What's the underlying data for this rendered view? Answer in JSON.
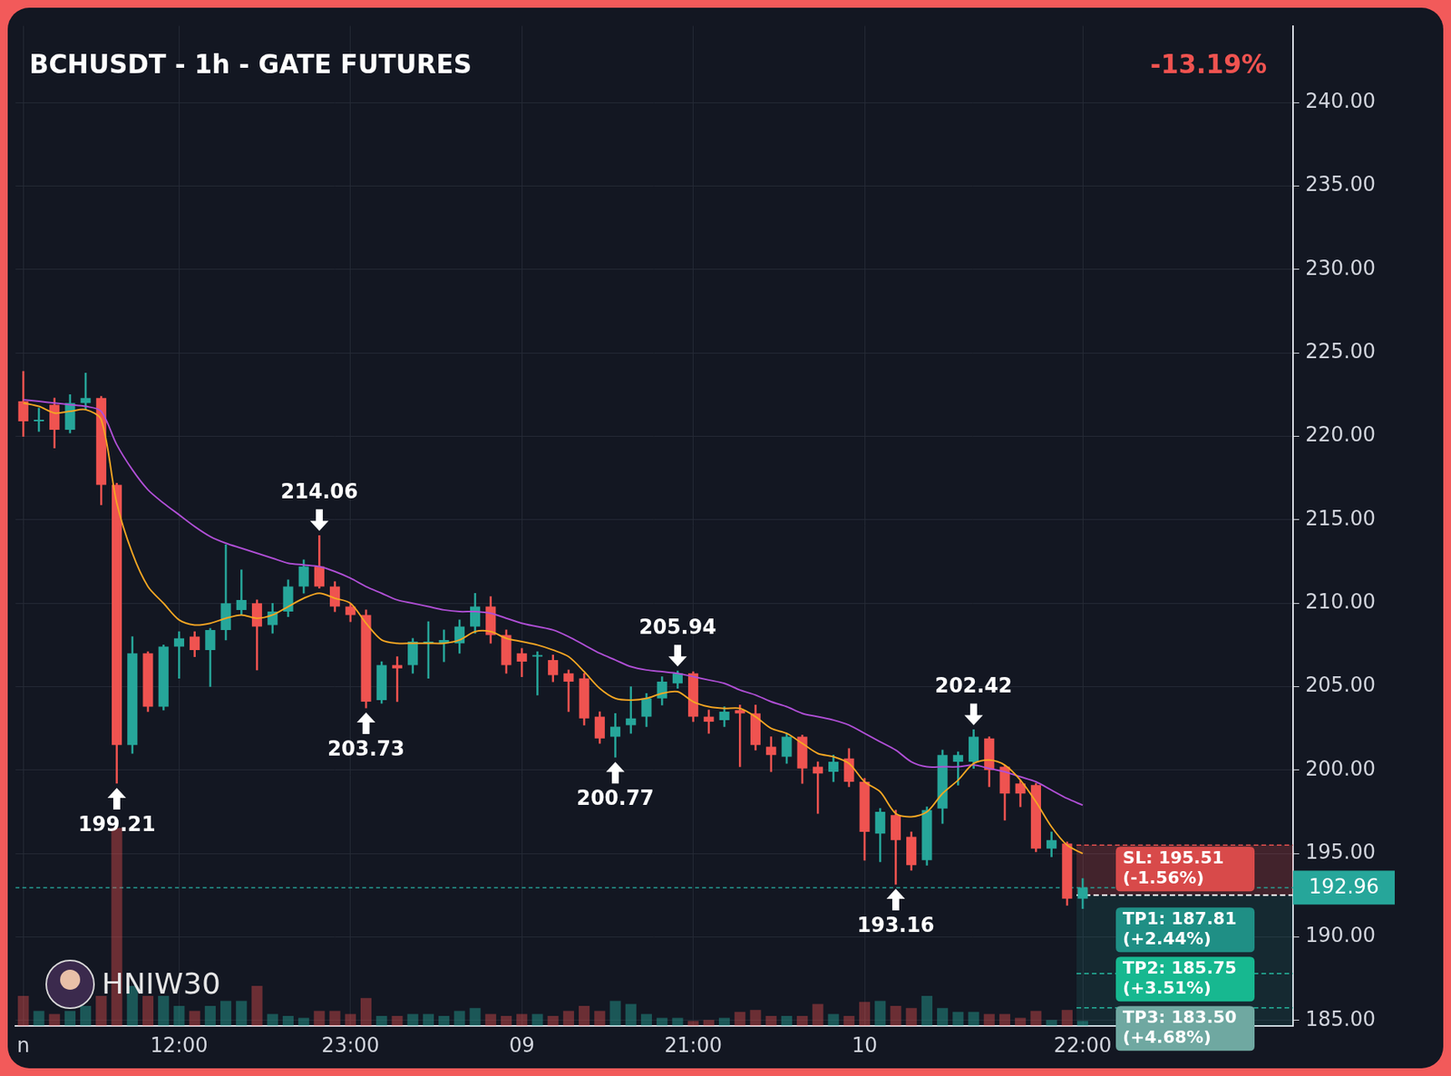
{
  "chart_data": {
    "type": "candlestick",
    "title": "BCHUSDT - 1h - GATE FUTURES",
    "change_label": "-13.19%",
    "watermark": "HNIW30",
    "categories": [
      "n",
      null,
      null,
      null,
      null,
      null,
      null,
      null,
      null,
      null,
      "12:00",
      null,
      null,
      null,
      null,
      null,
      null,
      null,
      null,
      null,
      null,
      "23:00",
      null,
      null,
      null,
      null,
      null,
      null,
      null,
      null,
      null,
      null,
      "09",
      null,
      null,
      null,
      null,
      null,
      null,
      null,
      null,
      null,
      null,
      "21:00",
      null,
      null,
      null,
      null,
      null,
      null,
      null,
      null,
      null,
      null,
      "10",
      null,
      null,
      null,
      null,
      null,
      null,
      null,
      null,
      null,
      null,
      null,
      null,
      null,
      "22:00"
    ],
    "open": [
      222.1,
      220.9,
      221.9,
      220.4,
      222.0,
      222.3,
      217.1,
      201.5,
      207.0,
      203.8,
      207.4,
      208.0,
      207.2,
      208.4,
      209.6,
      210.0,
      208.7,
      209.5,
      211.0,
      212.2,
      211.0,
      209.8,
      209.3,
      204.2,
      206.3,
      206.3,
      207.6,
      207.6,
      207.6,
      208.6,
      209.8,
      208.1,
      207.0,
      206.8,
      206.6,
      205.8,
      205.5,
      203.2,
      202.0,
      202.7,
      203.2,
      204.3,
      205.2,
      205.8,
      203.2,
      203.0,
      203.6,
      203.4,
      201.4,
      200.8,
      202.0,
      200.2,
      199.9,
      200.7,
      199.3,
      196.2,
      197.3,
      196.0,
      194.6,
      197.7,
      200.5,
      200.5,
      201.9,
      200.2,
      199.2,
      199.1,
      195.3,
      195.6,
      192.3
    ],
    "high": [
      223.9,
      221.7,
      222.3,
      222.5,
      223.8,
      222.4,
      217.2,
      208.0,
      207.1,
      207.5,
      208.3,
      208.3,
      208.5,
      213.5,
      212.0,
      210.2,
      210.0,
      211.4,
      212.6,
      214.06,
      211.3,
      210.0,
      209.6,
      206.5,
      206.8,
      207.9,
      208.9,
      208.4,
      209.0,
      210.6,
      210.4,
      208.4,
      207.3,
      207.1,
      206.9,
      206.0,
      205.8,
      203.5,
      203.4,
      205.0,
      204.6,
      205.6,
      205.94,
      205.9,
      203.6,
      203.8,
      203.9,
      203.9,
      202.0,
      202.2,
      202.1,
      200.5,
      200.9,
      201.3,
      199.5,
      197.7,
      197.6,
      196.3,
      197.8,
      201.2,
      201.1,
      202.42,
      202.0,
      200.3,
      199.4,
      199.2,
      196.3,
      195.7,
      193.5
    ],
    "low": [
      220.0,
      220.3,
      219.3,
      220.2,
      221.6,
      215.9,
      199.21,
      201.0,
      203.5,
      203.6,
      205.5,
      206.8,
      205.0,
      207.8,
      209.3,
      206.0,
      208.2,
      209.2,
      210.6,
      210.9,
      209.5,
      208.9,
      203.73,
      204.0,
      204.1,
      205.8,
      205.5,
      206.5,
      207.0,
      208.2,
      207.6,
      205.8,
      205.6,
      204.5,
      205.3,
      203.5,
      202.7,
      201.6,
      200.77,
      202.2,
      202.6,
      203.9,
      204.9,
      202.9,
      202.2,
      202.6,
      200.2,
      201.2,
      199.9,
      200.4,
      199.2,
      197.4,
      199.3,
      199.0,
      194.6,
      194.5,
      193.16,
      194.0,
      194.3,
      196.8,
      199.1,
      200.1,
      199.0,
      197.0,
      197.8,
      195.1,
      194.8,
      191.9,
      191.7
    ],
    "close": [
      220.9,
      221.0,
      220.4,
      222.0,
      222.3,
      217.1,
      201.5,
      207.0,
      203.8,
      207.4,
      207.9,
      207.2,
      208.4,
      210.0,
      210.2,
      208.6,
      209.5,
      211.0,
      212.2,
      211.0,
      209.8,
      209.3,
      204.1,
      206.3,
      206.1,
      207.7,
      207.7,
      207.8,
      208.6,
      209.8,
      208.1,
      206.3,
      206.5,
      206.9,
      205.7,
      205.3,
      203.1,
      201.9,
      202.6,
      203.1,
      204.3,
      205.3,
      205.8,
      203.2,
      202.9,
      203.5,
      203.4,
      201.5,
      200.9,
      202.0,
      200.1,
      199.8,
      200.5,
      199.3,
      196.3,
      197.5,
      195.8,
      194.3,
      197.6,
      200.9,
      200.9,
      202.0,
      200.0,
      198.6,
      198.6,
      195.3,
      195.8,
      192.3,
      192.96
    ],
    "series": [
      {
        "color": "#f5a623",
        "values": [
          222,
          221.8,
          221.4,
          221.5,
          221.6,
          221,
          216,
          213,
          211,
          210,
          209,
          208.7,
          208.8,
          209.1,
          209.3,
          209.1,
          209.3,
          209.8,
          210.3,
          210.6,
          210.3,
          210,
          208.8,
          207.8,
          207.6,
          207.6,
          207.6,
          207.6,
          207.8,
          208.3,
          208.3,
          207.9,
          207.7,
          207.5,
          207.2,
          206.8,
          205.9,
          204.9,
          204.3,
          204.2,
          204.3,
          204.6,
          204.7,
          204.1,
          203.8,
          203.7,
          203.7,
          203.2,
          202.5,
          202.2,
          201.6,
          201,
          200.8,
          200.4,
          199.3,
          198.7,
          197.4,
          197.2,
          197.5,
          198.6,
          199.4,
          200.4,
          200.6,
          200.3,
          199.4,
          198.1,
          196.6,
          195.5,
          195
        ]
      },
      {
        "color": "#b04fd6",
        "values": [
          222.2,
          222.1,
          222,
          221.9,
          221.8,
          221.5,
          219.5,
          218,
          216.8,
          216,
          215.3,
          214.6,
          214,
          213.6,
          213.3,
          213,
          212.7,
          212.4,
          212.3,
          212.2,
          211.9,
          211.5,
          211,
          210.6,
          210.2,
          210,
          209.8,
          209.6,
          209.5,
          209.5,
          209.4,
          209.1,
          208.8,
          208.6,
          208.4,
          208,
          207.5,
          207,
          206.6,
          206.2,
          206,
          205.9,
          205.8,
          205.6,
          205.4,
          205.2,
          204.8,
          204.5,
          204.1,
          203.8,
          203.4,
          203.2,
          203,
          202.7,
          202.2,
          201.7,
          201.2,
          200.5,
          200.2,
          200.2,
          200.2,
          200.3,
          200.1,
          199.9,
          199.6,
          199.3,
          198.8,
          198.3,
          197.9
        ]
      }
    ],
    "volume": {
      "ylim": [
        0,
        100
      ],
      "values": [
        3,
        1.5,
        1.2,
        1.5,
        2,
        3,
        19.8,
        4,
        3,
        3,
        2,
        1.5,
        2,
        2.5,
        2.5,
        4,
        1.2,
        1,
        0.8,
        1.5,
        1.5,
        1.2,
        2.8,
        1,
        1,
        1.2,
        1.2,
        1,
        1.5,
        1.8,
        1.2,
        1,
        1.2,
        1.2,
        1,
        1.5,
        2,
        1.5,
        2.5,
        2.2,
        1.2,
        0.8,
        0.8,
        0.5,
        0.6,
        0.8,
        1.4,
        1.6,
        1,
        1,
        1,
        2.2,
        1.2,
        1,
        2.4,
        2.5,
        2,
        1.8,
        3,
        1.8,
        1.4,
        1.4,
        1.2,
        1.2,
        0.8,
        1.5,
        0.6,
        1.6,
        0.5
      ]
    },
    "highs": [
      {
        "index": 19,
        "value": 214.06
      },
      {
        "index": 42,
        "value": 205.94
      },
      {
        "index": 61,
        "value": 202.42
      }
    ],
    "lows": [
      {
        "index": 6,
        "value": 199.21
      },
      {
        "index": 22,
        "value": 203.73
      },
      {
        "index": 38,
        "value": 200.77
      },
      {
        "index": 56,
        "value": 193.16
      }
    ],
    "last_price": 192.96,
    "entry": 192.51,
    "stop_loss": {
      "value": 195.51,
      "label": "SL: 195.51",
      "note": "(-1.56%)"
    },
    "take_profits": [
      {
        "value": 187.81,
        "label": "TP1: 187.81",
        "note": "(+2.44%)"
      },
      {
        "value": 185.75,
        "label": "TP2: 185.75",
        "note": "(+3.51%)"
      },
      {
        "value": 183.5,
        "label": "TP3: 183.50",
        "note": "(+4.68%)"
      }
    ],
    "ylim": [
      184.67,
      244.6
    ],
    "yticks": [
      {
        "value": 185,
        "label": "185.00"
      },
      {
        "value": 190,
        "label": "190.00"
      },
      {
        "value": 195,
        "label": "195.00"
      },
      {
        "value": 200,
        "label": "200.00"
      },
      {
        "value": 205,
        "label": "205.00"
      },
      {
        "value": 210,
        "label": "210.00"
      },
      {
        "value": 215,
        "label": "215.00"
      },
      {
        "value": 220,
        "label": "220.00"
      },
      {
        "value": 225,
        "label": "225.00"
      },
      {
        "value": 230,
        "label": "230.00"
      },
      {
        "value": 235,
        "label": "235.00"
      },
      {
        "value": 240,
        "label": "240.00"
      }
    ],
    "grid": true
  }
}
